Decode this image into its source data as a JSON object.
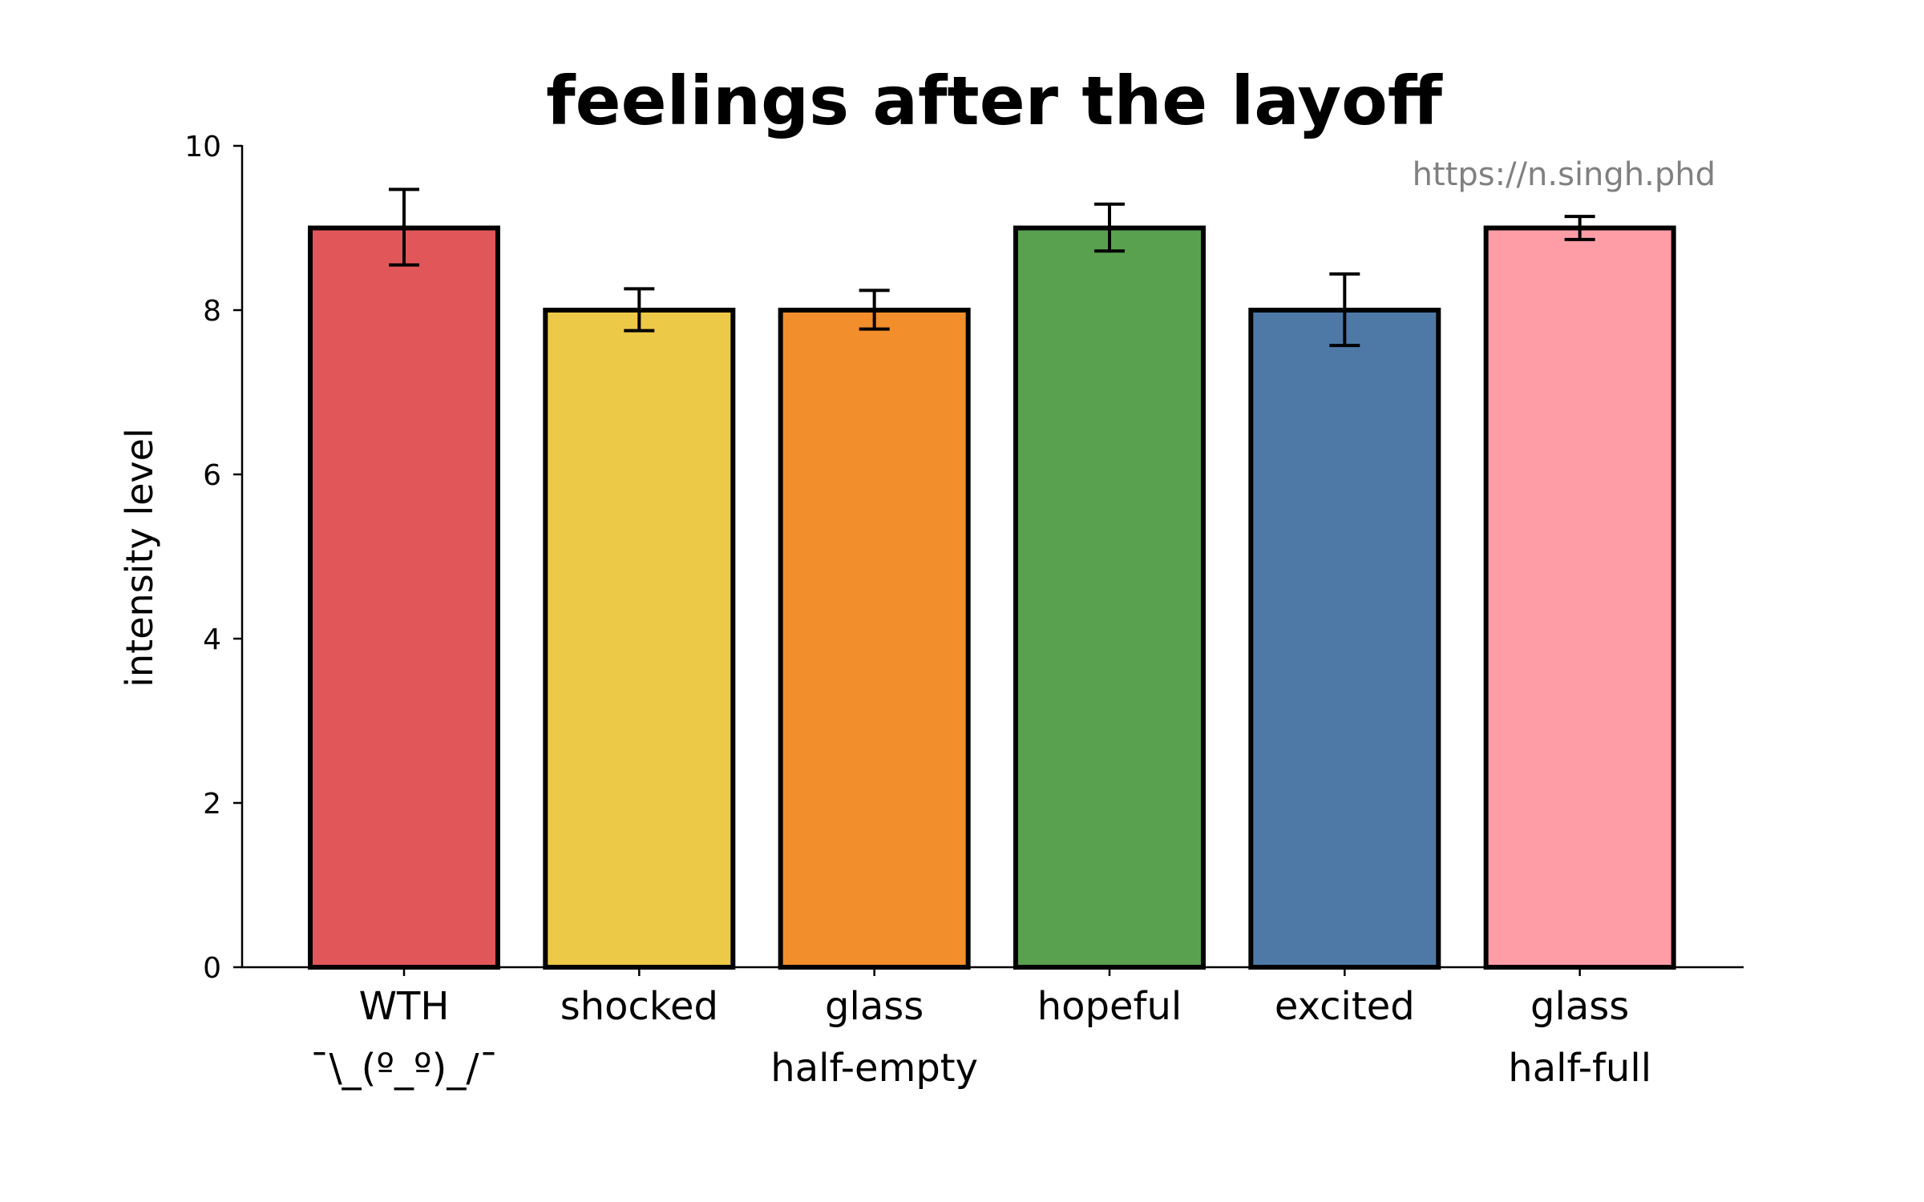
{
  "chart_data": {
    "type": "bar",
    "title": "feelings after the layoff",
    "xlabel": "",
    "ylabel": "intensity level",
    "ylim": [
      0,
      10
    ],
    "yticks": [
      "0",
      "2",
      "4",
      "6",
      "8",
      "10"
    ],
    "watermark": "https://n.singh.phd",
    "grid": false,
    "categories": [
      [
        "WTH",
        "¯\\_(º_º)_/¯"
      ],
      [
        "shocked"
      ],
      [
        "glass",
        "half-empty"
      ],
      [
        "hopeful"
      ],
      [
        "excited"
      ],
      [
        "glass",
        "half-full"
      ]
    ],
    "values": [
      9,
      8,
      8,
      9,
      8,
      9
    ],
    "error_low": [
      8.55,
      7.75,
      7.77,
      8.72,
      7.57,
      8.86
    ],
    "error_high": [
      9.47,
      8.26,
      8.24,
      9.29,
      8.44,
      9.14
    ],
    "colors": [
      "#e15759",
      "#edc948",
      "#f28e2b",
      "#59a14f",
      "#4e79a7",
      "#ff9da7"
    ],
    "edge_color": "#000000"
  }
}
